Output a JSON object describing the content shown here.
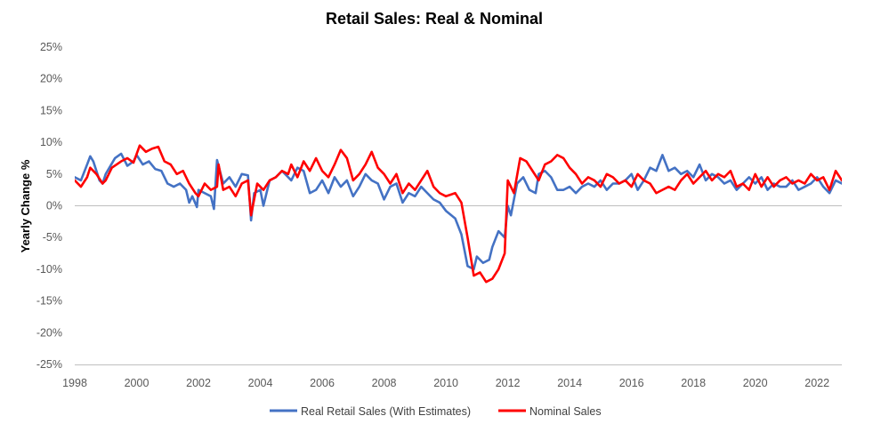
{
  "chart_data": {
    "type": "line",
    "title": "Retail Sales: Real & Nominal",
    "xlabel": "",
    "ylabel": "Yearly Change %",
    "xlim": [
      1998,
      2022.8
    ],
    "ylim": [
      -25,
      25
    ],
    "x_ticks": [
      1998,
      2000,
      2002,
      2004,
      2006,
      2008,
      2010,
      2012,
      2014,
      2016,
      2018,
      2020,
      2022
    ],
    "x_tick_labels": [
      "1998",
      "2000",
      "2002",
      "2004",
      "2006",
      "2008",
      "2010",
      "2012",
      "2014",
      "2016",
      "2018",
      "2020",
      "2022"
    ],
    "y_ticks": [
      25,
      20,
      15,
      10,
      5,
      0,
      -5,
      -10,
      -15,
      -20,
      -25
    ],
    "y_tick_labels": [
      "25%",
      "20%",
      "15%",
      "10%",
      "5%",
      "0%",
      "-5%",
      "-10%",
      "-15%",
      "-20%",
      "-25%"
    ],
    "grid": false,
    "legend_position": "bottom",
    "series": [
      {
        "name": "Real Retail Sales (With Estimates)",
        "color": "#4472C4",
        "points": [
          [
            1998.0,
            4.5
          ],
          [
            1998.2,
            4.0
          ],
          [
            1998.4,
            6.5
          ],
          [
            1998.5,
            7.8
          ],
          [
            1998.6,
            7.0
          ],
          [
            1998.8,
            4.0
          ],
          [
            1998.9,
            3.5
          ],
          [
            1999.0,
            5.0
          ],
          [
            1999.3,
            7.5
          ],
          [
            1999.5,
            8.2
          ],
          [
            1999.7,
            6.3
          ],
          [
            1999.9,
            7.0
          ],
          [
            2000.0,
            8.0
          ],
          [
            2000.2,
            6.5
          ],
          [
            2000.4,
            7.0
          ],
          [
            2000.6,
            5.8
          ],
          [
            2000.8,
            5.5
          ],
          [
            2001.0,
            3.5
          ],
          [
            2001.2,
            3.0
          ],
          [
            2001.4,
            3.5
          ],
          [
            2001.6,
            2.5
          ],
          [
            2001.7,
            0.5
          ],
          [
            2001.8,
            1.5
          ],
          [
            2001.95,
            -0.2
          ],
          [
            2002.0,
            2.5
          ],
          [
            2002.2,
            2.0
          ],
          [
            2002.4,
            1.5
          ],
          [
            2002.5,
            -0.5
          ],
          [
            2002.6,
            7.2
          ],
          [
            2002.8,
            3.5
          ],
          [
            2003.0,
            4.5
          ],
          [
            2003.2,
            3.0
          ],
          [
            2003.4,
            5.0
          ],
          [
            2003.6,
            4.8
          ],
          [
            2003.7,
            -2.3
          ],
          [
            2003.8,
            2.0
          ],
          [
            2004.0,
            2.5
          ],
          [
            2004.1,
            0.0
          ],
          [
            2004.3,
            4.0
          ],
          [
            2004.5,
            4.5
          ],
          [
            2004.7,
            5.5
          ],
          [
            2004.9,
            4.5
          ],
          [
            2005.0,
            4.0
          ],
          [
            2005.2,
            6.0
          ],
          [
            2005.4,
            5.5
          ],
          [
            2005.6,
            2.0
          ],
          [
            2005.8,
            2.5
          ],
          [
            2006.0,
            4.0
          ],
          [
            2006.2,
            2.0
          ],
          [
            2006.4,
            4.5
          ],
          [
            2006.6,
            3.0
          ],
          [
            2006.8,
            4.0
          ],
          [
            2007.0,
            1.5
          ],
          [
            2007.2,
            3.0
          ],
          [
            2007.4,
            5.0
          ],
          [
            2007.6,
            4.0
          ],
          [
            2007.8,
            3.5
          ],
          [
            2008.0,
            1.0
          ],
          [
            2008.2,
            3.0
          ],
          [
            2008.4,
            3.5
          ],
          [
            2008.6,
            0.5
          ],
          [
            2008.8,
            2.0
          ],
          [
            2009.0,
            1.5
          ],
          [
            2009.2,
            3.0
          ],
          [
            2009.4,
            2.0
          ],
          [
            2009.6,
            1.0
          ],
          [
            2009.8,
            0.5
          ],
          [
            2010.0,
            -0.8
          ],
          [
            2010.3,
            -2.0
          ],
          [
            2010.5,
            -4.5
          ],
          [
            2010.7,
            -9.5
          ],
          [
            2010.9,
            -10.0
          ],
          [
            2011.0,
            -8.0
          ],
          [
            2011.2,
            -9.0
          ],
          [
            2011.4,
            -8.5
          ],
          [
            2011.5,
            -6.5
          ],
          [
            2011.7,
            -4.0
          ],
          [
            2011.9,
            -5.0
          ],
          [
            2012.0,
            0.0
          ],
          [
            2012.1,
            -1.5
          ],
          [
            2012.3,
            3.5
          ],
          [
            2012.5,
            4.5
          ],
          [
            2012.7,
            2.5
          ],
          [
            2012.9,
            2.0
          ],
          [
            2013.0,
            5.0
          ],
          [
            2013.2,
            5.5
          ],
          [
            2013.4,
            4.5
          ],
          [
            2013.6,
            2.5
          ],
          [
            2013.8,
            2.5
          ],
          [
            2014.0,
            3.0
          ],
          [
            2014.2,
            2.0
          ],
          [
            2014.4,
            3.0
          ],
          [
            2014.6,
            3.5
          ],
          [
            2014.8,
            3.0
          ],
          [
            2015.0,
            4.0
          ],
          [
            2015.2,
            2.5
          ],
          [
            2015.4,
            3.5
          ],
          [
            2015.6,
            3.5
          ],
          [
            2015.8,
            4.0
          ],
          [
            2016.0,
            5.0
          ],
          [
            2016.2,
            2.5
          ],
          [
            2016.4,
            4.0
          ],
          [
            2016.6,
            6.0
          ],
          [
            2016.8,
            5.5
          ],
          [
            2017.0,
            8.0
          ],
          [
            2017.2,
            5.5
          ],
          [
            2017.4,
            6.0
          ],
          [
            2017.6,
            5.0
          ],
          [
            2017.8,
            5.5
          ],
          [
            2018.0,
            4.5
          ],
          [
            2018.2,
            6.5
          ],
          [
            2018.4,
            4.0
          ],
          [
            2018.6,
            5.0
          ],
          [
            2018.8,
            4.5
          ],
          [
            2019.0,
            3.5
          ],
          [
            2019.2,
            4.0
          ],
          [
            2019.4,
            2.5
          ],
          [
            2019.6,
            3.5
          ],
          [
            2019.8,
            4.5
          ],
          [
            2020.0,
            3.5
          ],
          [
            2020.2,
            4.5
          ],
          [
            2020.4,
            2.5
          ],
          [
            2020.6,
            3.5
          ],
          [
            2020.8,
            3.0
          ],
          [
            2021.0,
            3.0
          ],
          [
            2021.2,
            4.0
          ],
          [
            2021.4,
            2.5
          ],
          [
            2021.6,
            3.0
          ],
          [
            2021.8,
            3.5
          ],
          [
            2022.0,
            4.5
          ],
          [
            2022.2,
            3.0
          ],
          [
            2022.4,
            2.0
          ],
          [
            2022.6,
            4.0
          ],
          [
            2022.8,
            3.5
          ],
          [
            2022.9,
            4.5
          ],
          [
            2023.0,
            4.0
          ]
        ]
      },
      {
        "name": "Nominal Sales",
        "color": "#FF0000",
        "points": [
          [
            1998.0,
            4.0
          ],
          [
            1998.2,
            3.0
          ],
          [
            1998.4,
            4.5
          ],
          [
            1998.5,
            6.0
          ],
          [
            1998.7,
            5.0
          ],
          [
            1998.9,
            3.5
          ],
          [
            1999.0,
            4.0
          ],
          [
            1999.2,
            6.0
          ],
          [
            1999.5,
            7.0
          ],
          [
            1999.7,
            7.5
          ],
          [
            1999.9,
            6.8
          ],
          [
            2000.1,
            9.5
          ],
          [
            2000.3,
            8.5
          ],
          [
            2000.5,
            9.0
          ],
          [
            2000.7,
            9.3
          ],
          [
            2000.9,
            7.0
          ],
          [
            2001.1,
            6.5
          ],
          [
            2001.3,
            5.0
          ],
          [
            2001.5,
            5.5
          ],
          [
            2001.7,
            3.5
          ],
          [
            2001.9,
            2.0
          ],
          [
            2002.0,
            1.5
          ],
          [
            2002.2,
            3.5
          ],
          [
            2002.4,
            2.5
          ],
          [
            2002.6,
            3.0
          ],
          [
            2002.65,
            6.5
          ],
          [
            2002.8,
            2.5
          ],
          [
            2003.0,
            3.0
          ],
          [
            2003.2,
            1.5
          ],
          [
            2003.4,
            3.5
          ],
          [
            2003.6,
            4.0
          ],
          [
            2003.7,
            -1.5
          ],
          [
            2003.9,
            3.5
          ],
          [
            2004.1,
            2.5
          ],
          [
            2004.3,
            4.0
          ],
          [
            2004.5,
            4.5
          ],
          [
            2004.7,
            5.5
          ],
          [
            2004.9,
            5.0
          ],
          [
            2005.0,
            6.5
          ],
          [
            2005.2,
            4.5
          ],
          [
            2005.4,
            7.0
          ],
          [
            2005.6,
            5.5
          ],
          [
            2005.8,
            7.5
          ],
          [
            2006.0,
            5.5
          ],
          [
            2006.2,
            4.5
          ],
          [
            2006.4,
            6.5
          ],
          [
            2006.6,
            8.8
          ],
          [
            2006.8,
            7.5
          ],
          [
            2007.0,
            4.0
          ],
          [
            2007.2,
            5.0
          ],
          [
            2007.4,
            6.5
          ],
          [
            2007.6,
            8.5
          ],
          [
            2007.8,
            6.0
          ],
          [
            2008.0,
            5.0
          ],
          [
            2008.2,
            3.5
          ],
          [
            2008.4,
            5.0
          ],
          [
            2008.6,
            2.0
          ],
          [
            2008.8,
            3.5
          ],
          [
            2009.0,
            2.5
          ],
          [
            2009.2,
            4.0
          ],
          [
            2009.4,
            5.5
          ],
          [
            2009.6,
            3.0
          ],
          [
            2009.8,
            2.0
          ],
          [
            2010.0,
            1.5
          ],
          [
            2010.3,
            2.0
          ],
          [
            2010.5,
            0.5
          ],
          [
            2010.7,
            -5.0
          ],
          [
            2010.9,
            -11.0
          ],
          [
            2011.1,
            -10.5
          ],
          [
            2011.3,
            -12.0
          ],
          [
            2011.5,
            -11.5
          ],
          [
            2011.7,
            -10.0
          ],
          [
            2011.9,
            -7.5
          ],
          [
            2012.0,
            4.0
          ],
          [
            2012.2,
            2.0
          ],
          [
            2012.4,
            7.5
          ],
          [
            2012.6,
            7.0
          ],
          [
            2012.8,
            5.5
          ],
          [
            2013.0,
            4.0
          ],
          [
            2013.2,
            6.5
          ],
          [
            2013.4,
            7.0
          ],
          [
            2013.6,
            8.0
          ],
          [
            2013.8,
            7.5
          ],
          [
            2014.0,
            6.0
          ],
          [
            2014.2,
            5.0
          ],
          [
            2014.4,
            3.5
          ],
          [
            2014.6,
            4.5
          ],
          [
            2014.8,
            4.0
          ],
          [
            2015.0,
            3.0
          ],
          [
            2015.2,
            5.0
          ],
          [
            2015.4,
            4.5
          ],
          [
            2015.6,
            3.5
          ],
          [
            2015.8,
            4.0
          ],
          [
            2016.0,
            3.0
          ],
          [
            2016.2,
            5.0
          ],
          [
            2016.4,
            4.0
          ],
          [
            2016.6,
            3.5
          ],
          [
            2016.8,
            2.0
          ],
          [
            2017.0,
            2.5
          ],
          [
            2017.2,
            3.0
          ],
          [
            2017.4,
            2.5
          ],
          [
            2017.6,
            4.0
          ],
          [
            2017.8,
            5.0
          ],
          [
            2018.0,
            3.5
          ],
          [
            2018.2,
            4.5
          ],
          [
            2018.4,
            5.5
          ],
          [
            2018.6,
            4.0
          ],
          [
            2018.8,
            5.0
          ],
          [
            2019.0,
            4.5
          ],
          [
            2019.2,
            5.5
          ],
          [
            2019.4,
            3.0
          ],
          [
            2019.6,
            3.5
          ],
          [
            2019.8,
            2.5
          ],
          [
            2020.0,
            5.0
          ],
          [
            2020.2,
            3.0
          ],
          [
            2020.4,
            4.5
          ],
          [
            2020.6,
            3.0
          ],
          [
            2020.8,
            4.0
          ],
          [
            2021.0,
            4.5
          ],
          [
            2021.2,
            3.5
          ],
          [
            2021.4,
            4.0
          ],
          [
            2021.6,
            3.5
          ],
          [
            2021.8,
            5.0
          ],
          [
            2022.0,
            4.0
          ],
          [
            2022.2,
            4.5
          ],
          [
            2022.4,
            2.5
          ],
          [
            2022.6,
            5.5
          ],
          [
            2022.8,
            4.0
          ],
          [
            2022.9,
            4.5
          ],
          [
            2023.0,
            3.0
          ]
        ]
      }
    ]
  }
}
